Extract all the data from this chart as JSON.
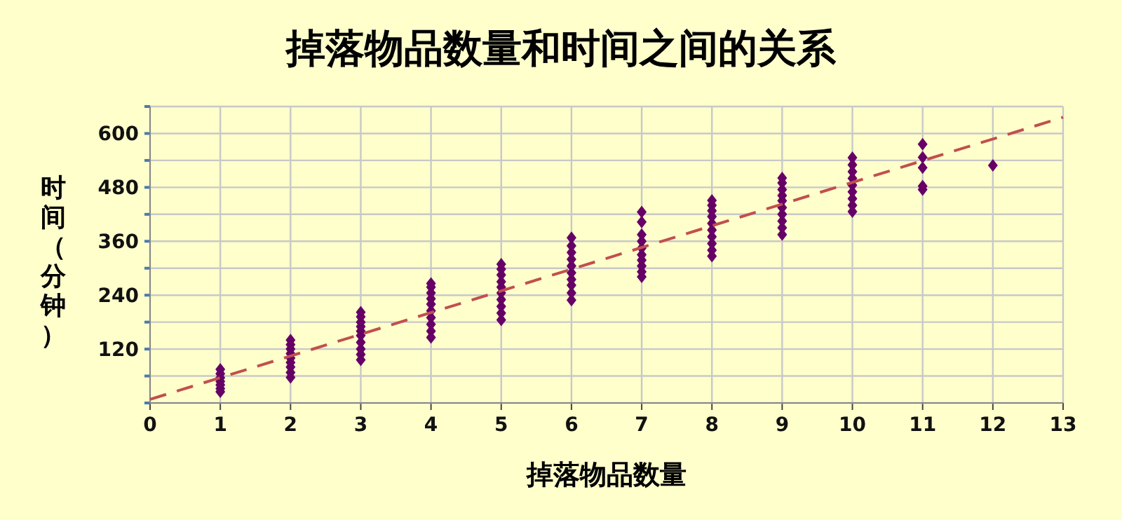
{
  "chart_data": {
    "type": "scatter",
    "title": "掉落物品数量和时间之间的关系",
    "xlabel": "掉落物品数量",
    "ylabel": "时间（分钟）",
    "xlim": [
      0,
      13
    ],
    "xticks": [
      0,
      1,
      2,
      3,
      4,
      5,
      6,
      7,
      8,
      9,
      10,
      11,
      12,
      13
    ],
    "ylim": [
      0,
      660
    ],
    "yticks": [
      {
        "value": 0,
        "label": null
      },
      {
        "value": 60,
        "label": null
      },
      120,
      {
        "value": 180,
        "label": null
      },
      240,
      {
        "value": 300,
        "label": null
      },
      360,
      {
        "value": 420,
        "label": null
      },
      480,
      {
        "value": 540,
        "label": null
      },
      600,
      {
        "value": 660,
        "label": null
      }
    ],
    "grid": true,
    "series": [
      {
        "marker": "diamond",
        "color": "#660066",
        "x": [
          1,
          1,
          1,
          1,
          1,
          1,
          1,
          2,
          2,
          2,
          2,
          2,
          2,
          2,
          2,
          2,
          3,
          3,
          3,
          3,
          3,
          3,
          3,
          3,
          3,
          3,
          4,
          4,
          4,
          4,
          4,
          4,
          4,
          4,
          4,
          4,
          5,
          5,
          5,
          5,
          5,
          5,
          5,
          5,
          5,
          5,
          6,
          6,
          6,
          6,
          6,
          6,
          6,
          6,
          6,
          6,
          7,
          7,
          7,
          7,
          7,
          7,
          7,
          7,
          7,
          7,
          8,
          8,
          8,
          8,
          8,
          8,
          8,
          8,
          8,
          8,
          9,
          9,
          9,
          9,
          9,
          9,
          9,
          9,
          9,
          9,
          10,
          10,
          10,
          10,
          10,
          10,
          10,
          10,
          10,
          11,
          11,
          11,
          11,
          11,
          12
        ],
        "values": [
          25,
          32,
          40,
          48,
          56,
          65,
          75,
          57,
          68,
          80,
          90,
          100,
          110,
          120,
          130,
          140,
          96,
          108,
          120,
          135,
          150,
          160,
          170,
          180,
          192,
          202,
          146,
          160,
          175,
          190,
          205,
          220,
          232,
          245,
          258,
          266,
          185,
          200,
          215,
          230,
          245,
          258,
          270,
          285,
          298,
          309,
          229,
          245,
          262,
          275,
          290,
          305,
          320,
          335,
          350,
          368,
          281,
          292,
          305,
          318,
          330,
          345,
          360,
          375,
          403,
          425,
          327,
          340,
          355,
          370,
          385,
          400,
          415,
          428,
          440,
          451,
          375,
          390,
          405,
          420,
          435,
          450,
          462,
          475,
          490,
          501,
          426,
          440,
          455,
          470,
          485,
          500,
          515,
          530,
          546,
          475,
          483,
          524,
          547,
          576,
          529
        ]
      },
      {
        "type": "line",
        "line_style": "dashed",
        "color": "#c0504d",
        "x": [
          0,
          13
        ],
        "values": [
          8,
          636
        ]
      }
    ]
  }
}
